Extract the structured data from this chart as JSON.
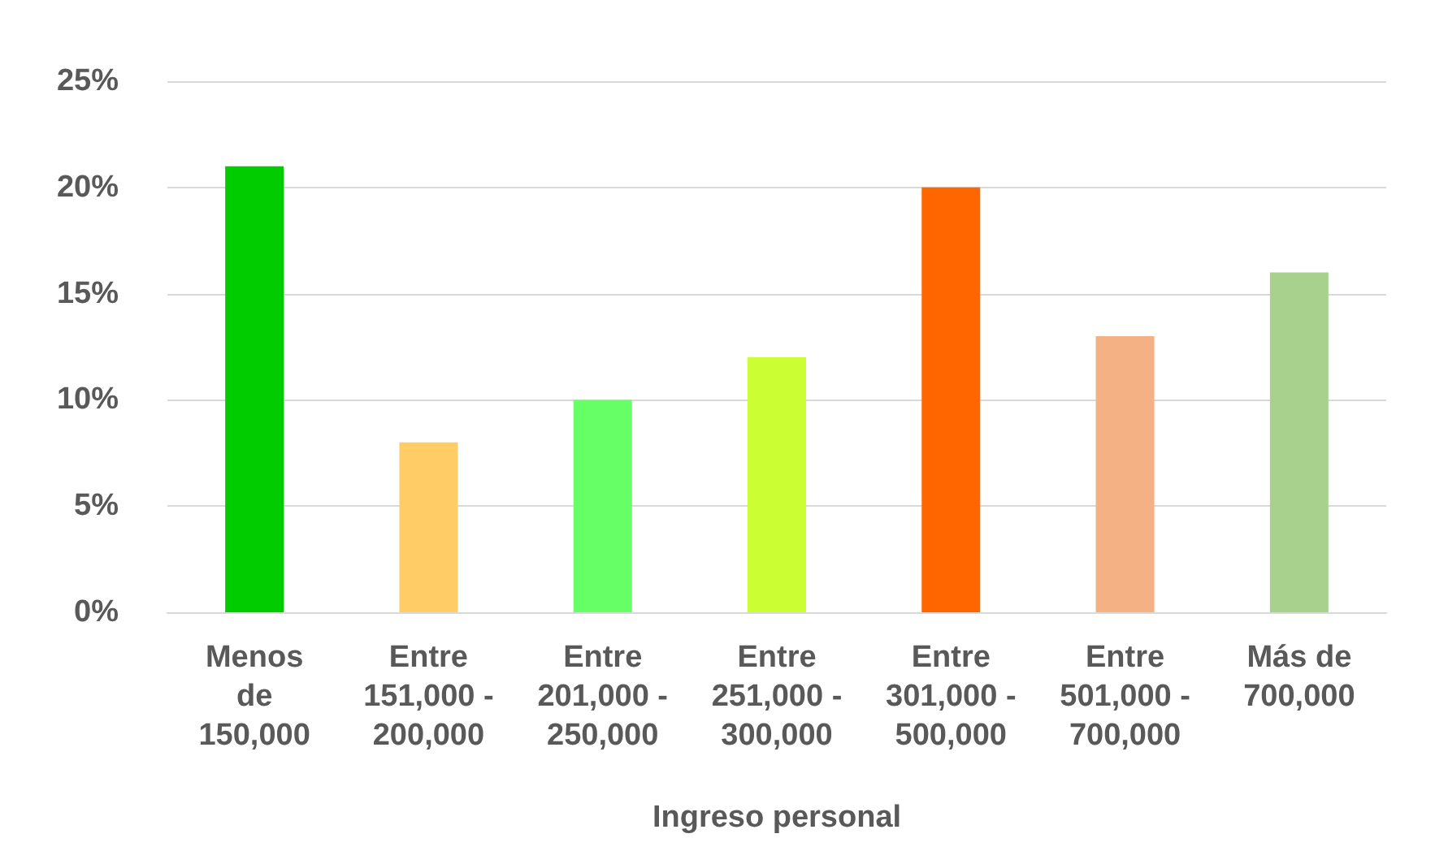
{
  "chart_data": {
    "type": "bar",
    "xlabel": "Ingreso personal",
    "categories": [
      "Menos de 150,000",
      "Entre 151,000 - 200,000",
      "Entre 201,000 - 250,000",
      "Entre 251,000 - 300,000",
      "Entre 301,000 - 500,000",
      "Entre 501,000 - 700,000",
      "Más de 700,000"
    ],
    "values": [
      21,
      8,
      10,
      12,
      20,
      13,
      16
    ],
    "colors": [
      "#00cc00",
      "#ffcc66",
      "#66ff66",
      "#ccff33",
      "#ff6600",
      "#f4b183",
      "#a9d18e"
    ],
    "ylim": [
      0,
      25
    ],
    "yticks": [
      {
        "value": 0,
        "label": "0%"
      },
      {
        "value": 5,
        "label": "5%"
      },
      {
        "value": 10,
        "label": "10%"
      },
      {
        "value": 15,
        "label": "15%"
      },
      {
        "value": 20,
        "label": "20%"
      },
      {
        "value": 25,
        "label": "25%"
      }
    ],
    "grid": "y"
  }
}
